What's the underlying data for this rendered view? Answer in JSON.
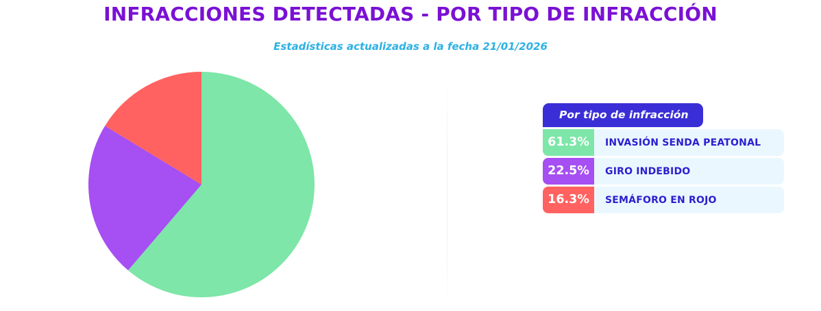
{
  "page": {
    "title": "INFRACCIONES DETECTADAS - POR TIPO DE INFRACCIÓN",
    "subtitle": "Estadísticas actualizadas a la fecha 21/01/2026"
  },
  "colors": {
    "title": "#7a11d4",
    "subtitle": "#2cb1e4",
    "legend_header_bg": "#3a2fd6",
    "legend_row_bg": "#ebf7fe",
    "legend_label": "#2a1fd0",
    "pct_text": "#ffffff"
  },
  "legend": {
    "header": "Por tipo de infracción",
    "items": [
      {
        "pct": "61.3%",
        "label": "INVASIÓN SENDA PEATONAL",
        "color": "#7de6a8"
      },
      {
        "pct": "22.5%",
        "label": "GIRO INDEBIDO",
        "color": "#a64ff2"
      },
      {
        "pct": "16.3%",
        "label": "SEMÁFORO EN ROJO",
        "color": "#ff6260"
      }
    ]
  },
  "chart_data": {
    "type": "pie",
    "title": "INFRACCIONES DETECTADAS - POR TIPO DE INFRACCIÓN",
    "subtitle": "Estadísticas actualizadas a la fecha 21/01/2026",
    "categories": [
      "INVASIÓN SENDA PEATONAL",
      "GIRO INDEBIDO",
      "SEMÁFORO EN ROJO"
    ],
    "values": [
      61.3,
      22.5,
      16.3
    ],
    "colors": [
      "#7de6a8",
      "#a64ff2",
      "#ff6260"
    ],
    "start": "top",
    "direction": "clockwise",
    "legend_placement": "right"
  }
}
